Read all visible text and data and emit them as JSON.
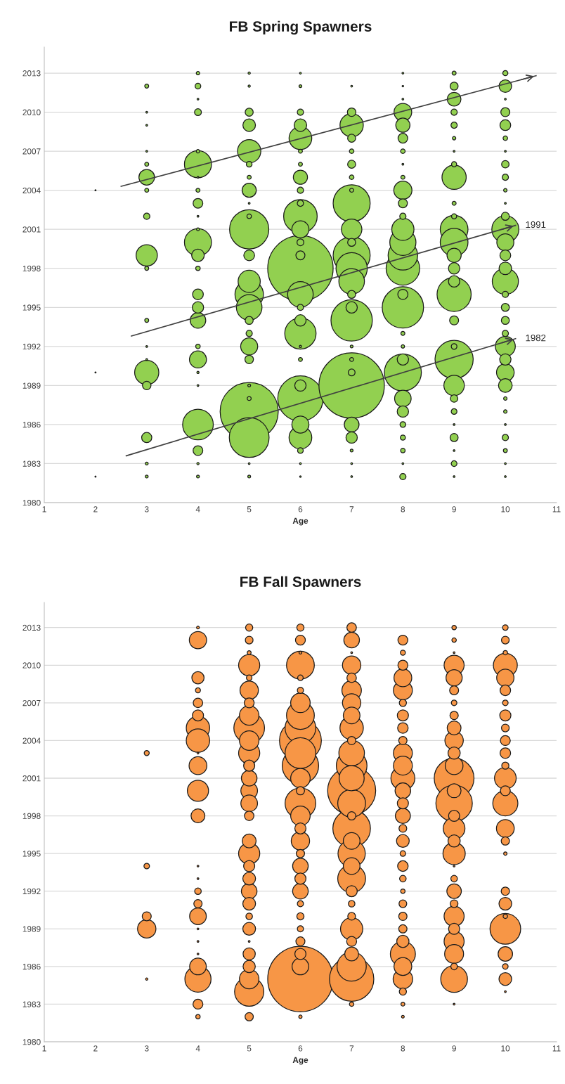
{
  "chart_data": [
    {
      "type": "bubble",
      "title": "FB Spring Spawners",
      "xlabel": "Age",
      "xlim": [
        1,
        11
      ],
      "xticks": [
        1,
        2,
        3,
        4,
        5,
        6,
        7,
        8,
        9,
        10,
        11
      ],
      "ylim": [
        1980,
        2015
      ],
      "yticks": [
        1980,
        1983,
        1986,
        1989,
        1992,
        1995,
        1998,
        2001,
        2004,
        2007,
        2010,
        2013
      ],
      "grid": "y",
      "series": [
        {
          "color": "#92d050",
          "x": [
            2,
            2,
            2
          ],
          "values": [
            2004,
            1990,
            1982
          ],
          "sizes": [
            0.0003,
            0.0003,
            0.0003
          ]
        },
        {
          "color": "#92d050",
          "x": [
            3,
            3,
            3,
            3,
            3,
            3,
            3,
            3,
            3,
            3,
            3,
            3,
            3,
            3,
            3,
            3,
            3,
            3
          ],
          "values": [
            2012,
            2010,
            2009,
            2007,
            2006,
            2005,
            2004,
            2002,
            1999,
            1998,
            1994,
            1992,
            1991,
            1990,
            1989,
            1985,
            1983,
            1982
          ],
          "sizes": [
            0.0037,
            0.0007,
            0.0007,
            0.0007,
            0.0037,
            0.057,
            0.0037,
            0.0091,
            0.106,
            0.0037,
            0.0037,
            0.0007,
            0.0007,
            0.137,
            0.017,
            0.024,
            0.0019,
            0.0019
          ]
        },
        {
          "color": "#92d050",
          "x": [
            4,
            4,
            4,
            4,
            4,
            4,
            4,
            4,
            4,
            4,
            4,
            4,
            4,
            4,
            4,
            4,
            4,
            4,
            4,
            4,
            4,
            4,
            4,
            4,
            4
          ],
          "values": [
            2013,
            2012,
            2011,
            2010,
            2007,
            2006,
            2005,
            2004,
            2003,
            2002,
            2001,
            2000,
            1999,
            1998,
            1996,
            1995,
            1994,
            1992,
            1991,
            1990,
            1989,
            1986,
            1984,
            1983,
            1982
          ],
          "sizes": [
            0.0027,
            0.0076,
            0.0007,
            0.011,
            0.0027,
            0.171,
            0.0007,
            0.0037,
            0.022,
            0.0007,
            0.0019,
            0.171,
            0.037,
            0.0048,
            0.027,
            0.03,
            0.057,
            0.0048,
            0.068,
            0.0012,
            0.0007,
            0.22,
            0.022,
            0.0012,
            0.0019
          ]
        },
        {
          "color": "#92d050",
          "x": [
            5,
            5,
            5,
            5,
            5,
            5,
            5,
            5,
            5,
            5,
            5,
            5,
            5,
            5,
            5,
            5,
            5,
            5,
            5,
            5,
            5,
            5,
            5,
            5,
            5
          ],
          "values": [
            2013,
            2012,
            2010,
            2009,
            2007,
            2006,
            2005,
            2004,
            2003,
            2002,
            2001,
            1999,
            1997,
            1996,
            1995,
            1994,
            1993,
            1992,
            1991,
            1989,
            1988,
            1987,
            1985,
            1983,
            1982
          ],
          "sizes": [
            0.0012,
            0.0012,
            0.015,
            0.037,
            0.127,
            0.0076,
            0.0037,
            0.047,
            0.0007,
            0.0048,
            0.36,
            0.027,
            0.115,
            0.189,
            0.153,
            0.015,
            0.0091,
            0.068,
            0.017,
            0.0019,
            0.0037,
            0.79,
            0.37,
            0.0007,
            0.0019
          ]
        },
        {
          "color": "#92d050",
          "x": [
            6,
            6,
            6,
            6,
            6,
            6,
            6,
            6,
            6,
            6,
            6,
            6,
            6,
            6,
            6,
            6,
            6,
            6,
            6,
            6,
            6,
            6,
            6,
            6,
            6,
            6,
            6,
            6
          ],
          "values": [
            2013,
            2012,
            2010,
            2009,
            2008,
            2007,
            2006,
            2005,
            2004,
            2003,
            2002,
            2001,
            2000,
            1999,
            1998,
            1996,
            1995,
            1994,
            1993,
            1992,
            1991,
            1989,
            1988,
            1986,
            1985,
            1984,
            1983,
            1982
          ],
          "sizes": [
            0.0007,
            0.0019,
            0.0091,
            0.037,
            0.121,
            0.0037,
            0.0037,
            0.047,
            0.0091,
            0.0091,
            0.263,
            0.068,
            0.011,
            0.019,
            1,
            0.153,
            0.0091,
            0.03,
            0.229,
            0.0012,
            0.0037,
            0.03,
            0.48,
            0.068,
            0.121,
            0.0076,
            0.0007,
            0.0005
          ]
        },
        {
          "color": "#92d050",
          "x": [
            7,
            7,
            7,
            7,
            7,
            7,
            7,
            7,
            7,
            7,
            7,
            7,
            7,
            7,
            7,
            7,
            7,
            7,
            7,
            7,
            7,
            7,
            7,
            7,
            7,
            7
          ],
          "values": [
            2012,
            2010,
            2009,
            2008,
            2007,
            2006,
            2005,
            2004,
            2003,
            2001,
            2000,
            1999,
            1998,
            1997,
            1996,
            1995,
            1994,
            1992,
            1991,
            1990,
            1989,
            1986,
            1985,
            1984,
            1983,
            1982
          ],
          "sizes": [
            0.0007,
            0.017,
            0.127,
            0.015,
            0.0048,
            0.015,
            0.0048,
            0.0037,
            0.32,
            0.098,
            0.015,
            0.32,
            0.229,
            0.153,
            0.015,
            0.03,
            0.4,
            0.0019,
            0.0037,
            0.011,
            1,
            0.051,
            0.03,
            0.0019,
            0.0007,
            0.0007
          ]
        },
        {
          "color": "#92d050",
          "x": [
            8,
            8,
            8,
            8,
            8,
            8,
            8,
            8,
            8,
            8,
            8,
            8,
            8,
            8,
            8,
            8,
            8,
            8,
            8,
            8,
            8,
            8,
            8,
            8,
            8,
            8,
            8,
            8,
            8
          ],
          "values": [
            2013,
            2012,
            2011,
            2010,
            2009,
            2008,
            2007,
            2006,
            2005,
            2004,
            2003,
            2002,
            2001,
            2000,
            1999,
            1998,
            1996,
            1995,
            1993,
            1992,
            1991,
            1990,
            1988,
            1987,
            1986,
            1985,
            1984,
            1983,
            1982
          ],
          "sizes": [
            0.0007,
            0.0005,
            0.0007,
            0.073,
            0.047,
            0.022,
            0.0048,
            0.0007,
            0.0037,
            0.077,
            0.019,
            0.0091,
            0.115,
            0.16,
            0.204,
            0.263,
            0.024,
            0.4,
            0.0037,
            0.0027,
            0.03,
            0.32,
            0.064,
            0.03,
            0.0076,
            0.0061,
            0.0048,
            0.0007,
            0.0091
          ]
        },
        {
          "color": "#92d050",
          "x": [
            9,
            9,
            9,
            9,
            9,
            9,
            9,
            9,
            9,
            9,
            9,
            9,
            9,
            9,
            9,
            9,
            9,
            9,
            9,
            9,
            9,
            9,
            9,
            9,
            9,
            9,
            9,
            9
          ],
          "values": [
            2013,
            2012,
            2011,
            2010,
            2009,
            2008,
            2007,
            2006,
            2005,
            2003,
            2002,
            2001,
            2000,
            1999,
            1998,
            1997,
            1996,
            1994,
            1992,
            1991,
            1989,
            1988,
            1987,
            1986,
            1985,
            1984,
            1983,
            1982
          ],
          "sizes": [
            0.0037,
            0.015,
            0.044,
            0.0091,
            0.0091,
            0.0027,
            0.0007,
            0.0061,
            0.137,
            0.0037,
            0.0061,
            0.18,
            0.18,
            0.047,
            0.03,
            0.03,
            0.272,
            0.019,
            0.0076,
            0.34,
            0.098,
            0.013,
            0.0076,
            0.0007,
            0.015,
            0.0007,
            0.0076,
            0.0007
          ]
        },
        {
          "color": "#92d050",
          "x": [
            10,
            10,
            10,
            10,
            10,
            10,
            10,
            10,
            10,
            10,
            10,
            10,
            10,
            10,
            10,
            10,
            10,
            10,
            10,
            10,
            10,
            10,
            10,
            10,
            10,
            10,
            10,
            10,
            10,
            10,
            10,
            10
          ],
          "values": [
            2013,
            2012,
            2011,
            2010,
            2009,
            2008,
            2007,
            2006,
            2005,
            2004,
            2003,
            2002,
            2001,
            2000,
            1999,
            1998,
            1997,
            1996,
            1995,
            1994,
            1993,
            1992,
            1991,
            1990,
            1989,
            1988,
            1987,
            1986,
            1985,
            1984,
            1983,
            1982
          ],
          "sizes": [
            0.0061,
            0.037,
            0.0007,
            0.019,
            0.027,
            0.0048,
            0.0007,
            0.013,
            0.0091,
            0.0027,
            0.0007,
            0.015,
            0.171,
            0.068,
            0.027,
            0.037,
            0.16,
            0.0091,
            0.015,
            0.015,
            0.0091,
            0.093,
            0.03,
            0.073,
            0.044,
            0.0027,
            0.0027,
            0.0007,
            0.0091,
            0.0037,
            0.0007,
            0.0007
          ]
        },
        {
          "type": "line",
          "color": "#404040",
          "x": [
            2.5,
            10.6
          ],
          "values": [
            2004.3,
            2012.8
          ]
        },
        {
          "type": "line",
          "color": "#404040",
          "x": [
            2.7,
            10.2
          ],
          "values": [
            1992.8,
            2001.3
          ]
        },
        {
          "type": "line",
          "color": "#404040",
          "x": [
            2.6,
            10.2
          ],
          "values": [
            1983.6,
            1992.6
          ]
        }
      ],
      "annotations": [
        {
          "text": "1991",
          "x": 10.2,
          "y": 2001.3
        },
        {
          "text": "1982",
          "x": 10.2,
          "y": 1992.6
        }
      ]
    },
    {
      "type": "bubble",
      "title": "FB Fall Spawners",
      "xlabel": "Age",
      "xlim": [
        1,
        11
      ],
      "xticks": [
        1,
        2,
        3,
        4,
        5,
        6,
        7,
        8,
        9,
        10,
        11
      ],
      "ylim": [
        1980,
        2015
      ],
      "yticks": [
        1980,
        1983,
        1986,
        1989,
        1992,
        1995,
        1998,
        2001,
        2004,
        2007,
        2010,
        2013
      ],
      "grid": "y",
      "series": [
        {
          "color": "#f79646",
          "x": [
            3,
            3,
            3,
            3,
            3
          ],
          "values": [
            2003,
            1994,
            1990,
            1989,
            1985
          ],
          "sizes": [
            0.0059,
            0.0072,
            0.019,
            0.079,
            0.0012
          ]
        },
        {
          "color": "#f79646",
          "x": [
            4,
            4,
            4,
            4,
            4,
            4,
            4,
            4,
            4,
            4,
            4,
            4,
            4,
            4,
            4,
            4,
            4,
            4,
            4,
            4,
            4,
            4,
            4,
            4
          ],
          "values": [
            2013,
            2012,
            2009,
            2008,
            2007,
            2006,
            2005,
            2004,
            2003,
            2002,
            2000,
            1998,
            1994,
            1993,
            1992,
            1991,
            1990,
            1989,
            1988,
            1987,
            1986,
            1985,
            1983,
            1982
          ],
          "sizes": [
            0.0018,
            0.07,
            0.035,
            0.0059,
            0.021,
            0.029,
            0.128,
            0.128,
            0.0007,
            0.074,
            0.105,
            0.045,
            0.0007,
            0.0007,
            0.01,
            0.016,
            0.065,
            0.0007,
            0.0007,
            0.0007,
            0.065,
            0.16,
            0.023,
            0.0046
          ]
        },
        {
          "color": "#f79646",
          "x": [
            5,
            5,
            5,
            5,
            5,
            5,
            5,
            5,
            5,
            5,
            5,
            5,
            5,
            5,
            5,
            5,
            5,
            5,
            5,
            5,
            5,
            5,
            5,
            5,
            5,
            5,
            5,
            5,
            5,
            5
          ],
          "values": [
            2013,
            2012,
            2011,
            2010,
            2009,
            2008,
            2007,
            2006,
            2005,
            2004,
            2003,
            2002,
            2001,
            2000,
            1999,
            1998,
            1996,
            1995,
            1994,
            1993,
            1992,
            1991,
            1990,
            1989,
            1988,
            1987,
            1986,
            1985,
            1984,
            1982
          ],
          "sizes": [
            0.012,
            0.014,
            0.0035,
            0.105,
            0.0072,
            0.079,
            0.023,
            0.089,
            0.22,
            0.089,
            0.105,
            0.029,
            0.057,
            0.065,
            0.065,
            0.021,
            0.045,
            0.105,
            0.029,
            0.038,
            0.057,
            0.038,
            0.01,
            0.038,
            0.0007,
            0.035,
            0.035,
            0.089,
            0.2,
            0.016
          ]
        },
        {
          "color": "#f79646",
          "x": [
            6,
            6,
            6,
            6,
            6,
            6,
            6,
            6,
            6,
            6,
            6,
            6,
            6,
            6,
            6,
            6,
            6,
            6,
            6,
            6,
            6,
            6,
            6,
            6,
            6,
            6,
            6,
            6,
            6,
            6
          ],
          "values": [
            2013,
            2012,
            2011,
            2010,
            2009,
            2008,
            2007,
            2006,
            2005,
            2004,
            2003,
            2002,
            2001,
            2000,
            1999,
            1998,
            1997,
            1996,
            1995,
            1994,
            1993,
            1992,
            1991,
            1990,
            1989,
            1988,
            1987,
            1986,
            1985,
            1982
          ],
          "sizes": [
            0.012,
            0.023,
            0.0018,
            0.181,
            0.0072,
            0.0088,
            0.089,
            0.181,
            0.22,
            0.41,
            0.22,
            0.31,
            0.089,
            0.016,
            0.22,
            0.089,
            0.029,
            0.079,
            0.016,
            0.057,
            0.029,
            0.057,
            0.0088,
            0.012,
            0.0088,
            0.019,
            0.029,
            0.065,
            1,
            0.0026
          ]
        },
        {
          "color": "#f79646",
          "x": [
            7,
            7,
            7,
            7,
            7,
            7,
            7,
            7,
            7,
            7,
            7,
            7,
            7,
            7,
            7,
            7,
            7,
            7,
            7,
            7,
            7,
            7,
            7,
            7,
            7,
            7,
            7,
            7,
            7,
            7
          ],
          "values": [
            2013,
            2012,
            2011,
            2010,
            2009,
            2008,
            2007,
            2006,
            2005,
            2004,
            2003,
            2002,
            2001,
            2000,
            1999,
            1998,
            1997,
            1996,
            1995,
            1994,
            1993,
            1992,
            1991,
            1990,
            1989,
            1988,
            1987,
            1986,
            1985,
            1983
          ],
          "sizes": [
            0.021,
            0.057,
            0.0007,
            0.079,
            0.021,
            0.089,
            0.079,
            0.065,
            0.128,
            0.016,
            0.153,
            0.22,
            0.147,
            0.54,
            0.181,
            0.016,
            0.33,
            0.065,
            0.174,
            0.065,
            0.181,
            0.029,
            0.01,
            0.014,
            0.116,
            0.023,
            0.045,
            0.2,
            0.46,
            0.0046
          ]
        },
        {
          "color": "#f79646",
          "x": [
            8,
            8,
            8,
            8,
            8,
            8,
            8,
            8,
            8,
            8,
            8,
            8,
            8,
            8,
            8,
            8,
            8,
            8,
            8,
            8,
            8,
            8,
            8,
            8,
            8,
            8,
            8,
            8,
            8,
            8,
            8
          ],
          "values": [
            2012,
            2011,
            2010,
            2009,
            2008,
            2007,
            2006,
            2005,
            2004,
            2003,
            2002,
            2001,
            2000,
            1999,
            1998,
            1997,
            1996,
            1995,
            1994,
            1993,
            1992,
            1991,
            1990,
            1989,
            1988,
            1987,
            1986,
            1985,
            1984,
            1983,
            1982
          ],
          "sizes": [
            0.023,
            0.0059,
            0.023,
            0.074,
            0.084,
            0.012,
            0.029,
            0.026,
            0.016,
            0.084,
            0.084,
            0.134,
            0.057,
            0.029,
            0.053,
            0.014,
            0.038,
            0.0072,
            0.026,
            0.01,
            0.0046,
            0.014,
            0.016,
            0.016,
            0.035,
            0.147,
            0.074,
            0.089,
            0.012,
            0.0035,
            0.0018
          ]
        },
        {
          "color": "#f79646",
          "x": [
            9,
            9,
            9,
            9,
            9,
            9,
            9,
            9,
            9,
            9,
            9,
            9,
            9,
            9,
            9,
            9,
            9,
            9,
            9,
            9,
            9,
            9,
            9,
            9,
            9,
            9,
            9,
            9,
            9,
            9
          ],
          "values": [
            2013,
            2012,
            2011,
            2010,
            2009,
            2008,
            2007,
            2006,
            2005,
            2004,
            2003,
            2002,
            2001,
            2000,
            1999,
            1998,
            1997,
            1996,
            1995,
            1994,
            1993,
            1992,
            1991,
            1990,
            1989,
            1988,
            1987,
            1986,
            1985,
            1983
          ],
          "sizes": [
            0.0046,
            0.0046,
            0.0007,
            0.094,
            0.061,
            0.019,
            0.0072,
            0.016,
            0.045,
            0.079,
            0.035,
            0.074,
            0.37,
            0.045,
            0.31,
            0.029,
            0.11,
            0.035,
            0.116,
            0.0007,
            0.01,
            0.049,
            0.014,
            0.094,
            0.029,
            0.094,
            0.084,
            0.01,
            0.167,
            0.0007
          ]
        },
        {
          "color": "#f79646",
          "x": [
            10,
            10,
            10,
            10,
            10,
            10,
            10,
            10,
            10,
            10,
            10,
            10,
            10,
            10,
            10,
            10,
            10,
            10,
            10,
            10,
            10,
            10,
            10,
            10,
            10,
            10
          ],
          "values": [
            2013,
            2012,
            2011,
            2010,
            2009,
            2008,
            2007,
            2006,
            2005,
            2004,
            2003,
            2002,
            2001,
            2000,
            1999,
            1997,
            1996,
            1995,
            1992,
            1991,
            1990,
            1989,
            1987,
            1986,
            1985,
            1984
          ],
          "sizes": [
            0.0072,
            0.014,
            0.0046,
            0.134,
            0.07,
            0.026,
            0.0072,
            0.029,
            0.014,
            0.023,
            0.026,
            0.012,
            0.11,
            0.023,
            0.147,
            0.074,
            0.016,
            0.0026,
            0.016,
            0.038,
            0.0046,
            0.22,
            0.049,
            0.0072,
            0.038,
            0.0007
          ]
        }
      ]
    }
  ]
}
